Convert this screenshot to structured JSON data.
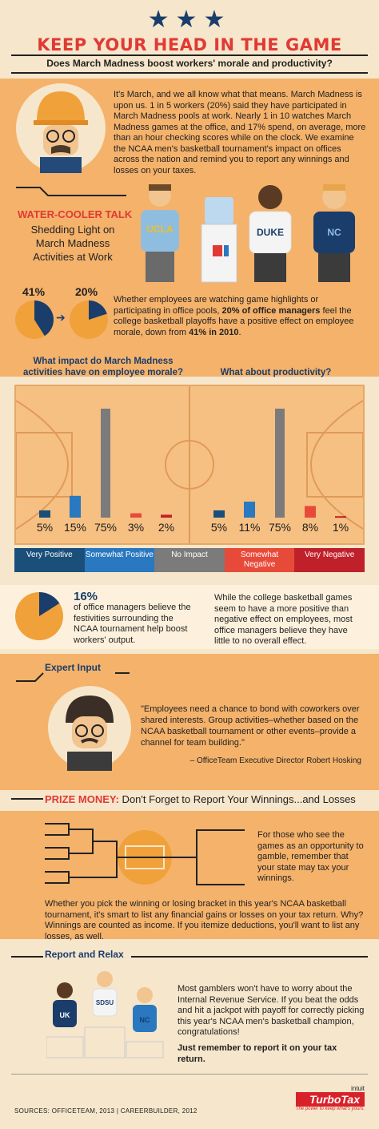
{
  "header": {
    "stars": "★★★",
    "title": "KEEP YOUR HEAD IN THE GAME",
    "subtitle": "Does March Madness boost workers' morale and productivity?"
  },
  "intro": {
    "text": "It's March, and we all know what that means. March Madness is upon us. 1 in 5 workers (20%) said they have participated in March Madness pools at work. Nearly 1 in 10 watches March Madness games at the office, and 17% spend, on average, more than an hour checking scores while on the clock. We examine the NCAA men's basketball tournament's impact on offices across the nation and remind you to report any winnings and losses on your taxes."
  },
  "water_cooler": {
    "title": "WATER-COOLER TALK",
    "subtitle": "Shedding Light on March Madness Activities at Work",
    "shirts": [
      "UCLA",
      "DUKE",
      "NC"
    ]
  },
  "morale_change": {
    "from_label": "41%",
    "to_label": "20%",
    "from_value": 41,
    "to_value": 20,
    "text_a": "Whether employees are watching game highlights or participating in office pools, ",
    "text_b": "20% of office managers",
    "text_c": " feel the college basketball playoffs have a positive effect on employee morale, down from ",
    "text_d": "41% in 2010",
    "text_e": "."
  },
  "questions": {
    "morale": "What impact do March Madness activities have on employee morale?",
    "productivity": "What about productivity?"
  },
  "chart_data": [
    {
      "type": "bar",
      "title": "What impact do March Madness activities have on employee morale?",
      "categories": [
        "Very Positive",
        "Somewhat Positive",
        "No Impact",
        "Somewhat Negative",
        "Very Negative"
      ],
      "values": [
        5,
        15,
        75,
        3,
        2
      ],
      "labels": [
        "5%",
        "15%",
        "75%",
        "3%",
        "2%"
      ]
    },
    {
      "type": "bar",
      "title": "What about productivity?",
      "categories": [
        "Very Positive",
        "Somewhat Positive",
        "No Impact",
        "Somewhat Negative",
        "Very Negative"
      ],
      "values": [
        5,
        11,
        75,
        8,
        1
      ],
      "labels": [
        "5%",
        "11%",
        "75%",
        "8%",
        "1%"
      ]
    }
  ],
  "legend": [
    {
      "label": "Very Positive",
      "color": "#1a4f7a"
    },
    {
      "label": "Somewhat Positive",
      "color": "#2a78bf"
    },
    {
      "label": "No Impact",
      "color": "#7b7b7b"
    },
    {
      "label": "Somewhat Negative",
      "color": "#e84a3a"
    },
    {
      "label": "Very Negative",
      "color": "#c0202a"
    }
  ],
  "sixteen": {
    "value": 16,
    "label": "16%",
    "text": "of office managers believe the festivities surrounding the NCAA tournament help boost workers' output.",
    "side_text": "While the college basketball games seem to have a more positive than negative effect on employees, most office managers believe they have little to no overall effect."
  },
  "expert": {
    "heading": "Expert Input",
    "quote": "\"Employees need a chance to bond with coworkers over shared interests. Group activities–whether based on the NCAA basketball tournament or other events–provide a channel for team building.\"",
    "attribution": "– OfficeTeam Executive Director Robert Hosking"
  },
  "prize": {
    "label": "PRIZE MONEY:",
    "rest": " Don't Forget to Report Your Winnings...and Losses",
    "side_text": "For those who see the games as an opportunity to gamble, remember that your state may tax your winnings.",
    "body": "Whether you pick the winning or losing bracket in this year's NCAA basketball tournament, it's smart to list any financial gains or losses on your tax return. Why? Winnings are counted as income. If you itemize deductions, you'll want to list any losses, as well."
  },
  "relax": {
    "heading": "Report and Relax",
    "text": "Most gamblers won't have to worry about the Internal Revenue Service. If you beat the odds and hit a jackpot with payoff for correctly picking this year's NCAA men's basketball champion, congratulations!",
    "closing": "Just remember to report it on your tax return.",
    "shirts": [
      "UK",
      "SDSU",
      "NC"
    ]
  },
  "footer": {
    "sources": "SOURCES: OFFICETEAM, 2013  |  CAREERBUILDER, 2012",
    "logo_top": "intuit",
    "logo_main": "TurboTax",
    "logo_tag": "The power to keep what's yours."
  },
  "colors": {
    "navy": "#1a3d6b",
    "red": "#e03a34",
    "orange": "#f4b26b",
    "cream": "#f6e6cb"
  }
}
